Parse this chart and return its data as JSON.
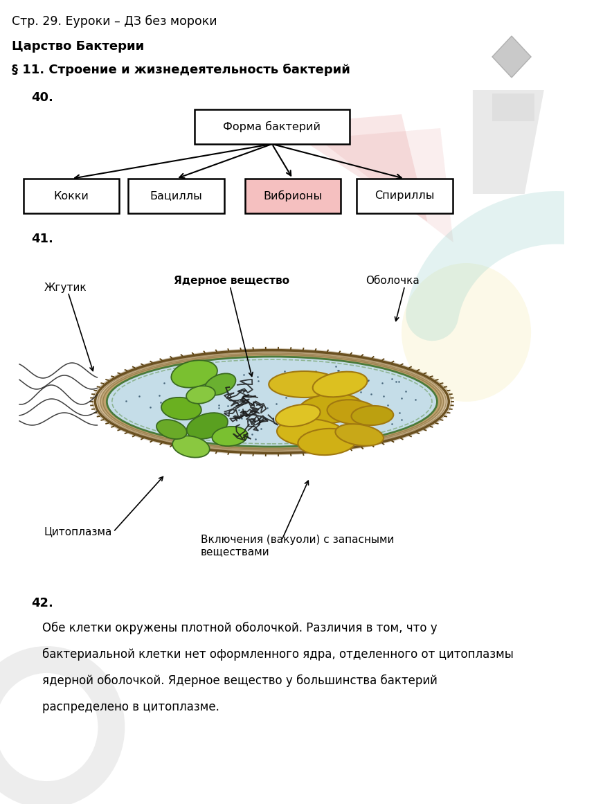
{
  "title_line1": "Стр. 29. Еуроки – ДЗ без мороки",
  "title_line2": "Царство Бактерии",
  "title_line3": "§ 11. Строение и жизнедеятельность бактерий",
  "num40": "40.",
  "num41": "41.",
  "num42": "42.",
  "root_label": "Форма бактерий",
  "children_labels": [
    "Кокки",
    "Бациллы",
    "Вибрионы",
    "Спириллы"
  ],
  "vibriony_highlight": "#f5c0c0",
  "box_color": "#ffffff",
  "cell_labels": {
    "flagellum": "Жгутик",
    "nuclear": "Ядерное вещество",
    "shell": "Оболочка",
    "cytoplasm": "Цитоплазма",
    "vacuoles": "Включения (вакуоли) с запасными\nвеществами"
  },
  "text42_lines": [
    "Обе клетки окружены плотной оболочкой. Различия в том, что у",
    "бактериальной клетки нет оформленного ядра, отделенного от цитоплазмы",
    "ядерной оболочкой. Ядерное вещество у большинства бактерий",
    "распределено в цитоплазме."
  ],
  "bg_color": "#ffffff",
  "text_color": "#000000"
}
